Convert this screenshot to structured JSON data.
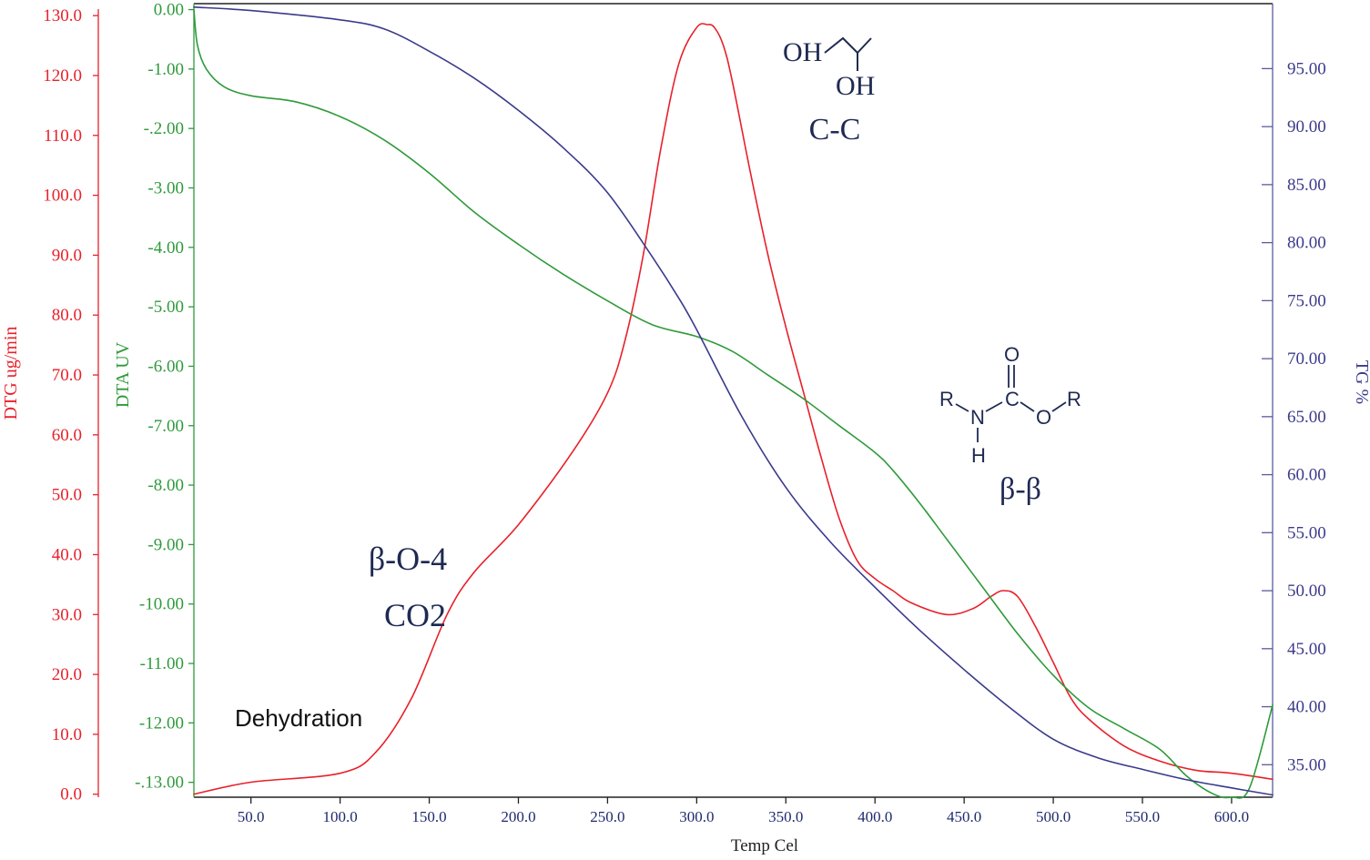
{
  "chart_data": {
    "type": "line",
    "title": "",
    "xlabel": "Temp Cel",
    "xlim": [
      18,
      623
    ],
    "x_ticks": [
      50,
      100,
      150,
      200,
      250,
      300,
      350,
      400,
      450,
      500,
      550,
      600
    ],
    "x_tick_labels": [
      "50.0",
      "100.0",
      "150.0",
      "200.0",
      "250.0",
      "300.0",
      "350.0",
      "400.0",
      "450.0",
      "500.0",
      "550.0",
      "600.0"
    ],
    "grid": false,
    "axes": {
      "dtg": {
        "label": "DTG ug/min",
        "color": "#e8202a",
        "side": "left-outer",
        "ylim": [
          -0.5,
          132
        ],
        "ticks": [
          0,
          10,
          20,
          30,
          40,
          50,
          60,
          70,
          80,
          90,
          100,
          110,
          120,
          130
        ],
        "tick_labels": [
          "0.0",
          "10.0",
          "20.0",
          "30.0",
          "40.0",
          "50.0",
          "60.0",
          "70.0",
          "80.0",
          "90.0",
          "100.0",
          "110.0",
          "120.0",
          "130.0"
        ]
      },
      "dta": {
        "label": "DTA UV",
        "color": "#2e9a3a",
        "side": "left-inner",
        "ylim": [
          -13.25,
          0.1
        ],
        "ticks": [
          0,
          -1,
          -2,
          -3,
          -4,
          -5,
          -6,
          -7,
          -8,
          -9,
          -10,
          -11,
          -12,
          -13
        ],
        "tick_labels": [
          "0.00",
          "-1.00",
          "-.2.00",
          "-3.00",
          "-4.00",
          "-5.00",
          "-6.00",
          "-7.00",
          "-8.00",
          "-9.00",
          "-10.00",
          "-11.00",
          "-12.00",
          "-.13.00"
        ]
      },
      "tg": {
        "label": "TG %",
        "color": "#3a3a8c",
        "side": "right",
        "ylim": [
          32.2,
          100.6
        ],
        "ticks": [
          35,
          40,
          45,
          50,
          55,
          60,
          65,
          70,
          75,
          80,
          85,
          90,
          95
        ],
        "tick_labels": [
          "35.00",
          "40.00",
          "45.00",
          "50.00",
          "55.00",
          "60.00",
          "65.00",
          "70.00",
          "75.00",
          "80.00",
          "85.00",
          "90.00",
          "95.00"
        ]
      }
    },
    "series": [
      {
        "axis": "dtg",
        "color": "#e8202a",
        "x": [
          18,
          50,
          100,
          120,
          140,
          160,
          175,
          200,
          230,
          250,
          260,
          270,
          280,
          290,
          300,
          306,
          310,
          315,
          320,
          330,
          340,
          350,
          360,
          370,
          380,
          390,
          400,
          410,
          420,
          440,
          455,
          465,
          472,
          480,
          490,
          500,
          510,
          520,
          540,
          560,
          580,
          600,
          623
        ],
        "values": [
          0,
          2,
          3.5,
          7,
          16,
          30,
          37,
          45,
          57,
          67,
          76,
          90,
          108,
          122,
          128,
          128.5,
          128,
          125,
          119,
          104,
          90,
          78,
          67,
          56,
          46,
          39,
          36,
          34,
          32,
          30,
          31,
          33,
          34,
          33,
          28,
          22,
          16,
          12.5,
          8,
          5.5,
          4,
          3.5,
          2.5
        ]
      },
      {
        "axis": "dta",
        "color": "#2e9a3a",
        "x": [
          18,
          20,
          25,
          35,
          50,
          75,
          100,
          125,
          150,
          175,
          200,
          225,
          250,
          275,
          300,
          320,
          340,
          360,
          380,
          400,
          410,
          425,
          440,
          460,
          480,
          500,
          520,
          540,
          560,
          575,
          590,
          600,
          610,
          623
        ],
        "values": [
          0,
          -0.6,
          -1.0,
          -1.3,
          -1.45,
          -1.55,
          -1.8,
          -2.2,
          -2.75,
          -3.4,
          -3.95,
          -4.45,
          -4.9,
          -5.3,
          -5.5,
          -5.75,
          -6.15,
          -6.55,
          -7.0,
          -7.45,
          -7.75,
          -8.3,
          -8.9,
          -9.7,
          -10.5,
          -11.2,
          -11.75,
          -12.1,
          -12.45,
          -12.9,
          -13.2,
          -13.25,
          -13.1,
          -11.7
        ]
      },
      {
        "axis": "tg",
        "color": "#3a3a8c",
        "x": [
          18,
          50,
          100,
          125,
          150,
          175,
          200,
          225,
          250,
          275,
          290,
          300,
          325,
          350,
          375,
          400,
          425,
          450,
          475,
          500,
          525,
          550,
          575,
          600,
          623
        ],
        "values": [
          100.3,
          100,
          99.2,
          98.4,
          96.5,
          94.2,
          91.4,
          88.2,
          84.3,
          78.8,
          75.2,
          72.5,
          65.1,
          58.9,
          54.2,
          50.3,
          46.6,
          43.2,
          40.0,
          37.2,
          35.6,
          34.6,
          33.7,
          33.0,
          32.4
        ]
      }
    ],
    "annotations": [
      {
        "text": "β-O-4"
      },
      {
        "text": "CO2"
      },
      {
        "text": "Dehydration"
      },
      {
        "text": "C-C"
      },
      {
        "text": "β-β"
      },
      {
        "text": "OH"
      },
      {
        "text": "OH"
      },
      {
        "text": "R"
      },
      {
        "text": "N"
      },
      {
        "text": "H"
      },
      {
        "text": "C"
      },
      {
        "text": "O"
      },
      {
        "text": "O"
      },
      {
        "text": "R"
      }
    ]
  }
}
